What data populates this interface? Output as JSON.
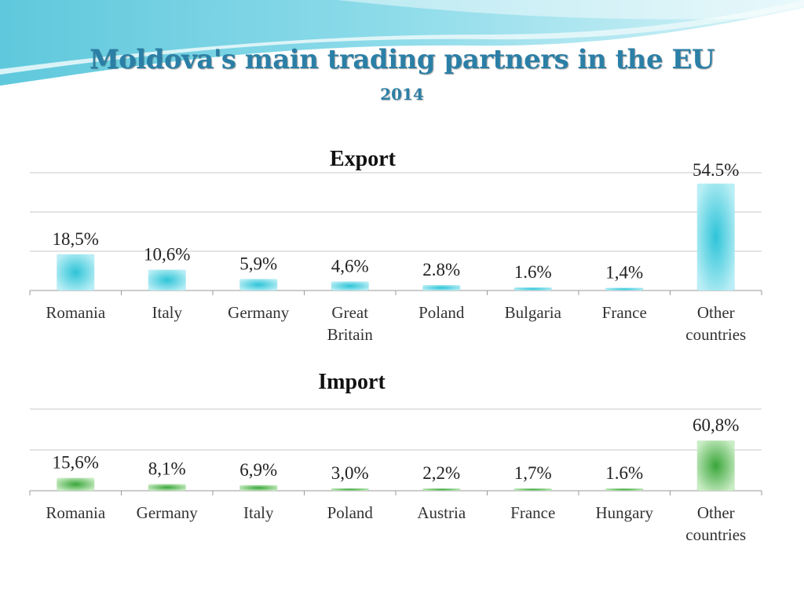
{
  "title": "Moldova's main trading partners in the EU",
  "subtitle": "2014",
  "colors": {
    "title": "#2b7fa6",
    "export_bar": "#2ec4d8",
    "export_bar_light": "#b9eef5",
    "import_bar": "#3aa63a",
    "import_bar_light": "#c9ecc4"
  },
  "chart_data": [
    {
      "type": "bar",
      "title": "Export",
      "categories": [
        "Romania",
        "Italy",
        "Germany",
        "Great Britain",
        "Poland",
        "Bulgaria",
        "France",
        "Other countries"
      ],
      "category_lines": [
        [
          "Romania"
        ],
        [
          "Italy"
        ],
        [
          "Germany"
        ],
        [
          "Great",
          "Britain"
        ],
        [
          "Poland"
        ],
        [
          "Bulgaria"
        ],
        [
          "France"
        ],
        [
          "Other",
          "countries"
        ]
      ],
      "values": [
        18.5,
        10.6,
        5.9,
        4.6,
        2.8,
        1.6,
        1.4,
        54.5
      ],
      "value_labels": [
        "18,5%",
        "10,6%",
        "5,9%",
        "4,6%",
        "2.8%",
        "1.6%",
        "1,4%",
        "54.5%"
      ],
      "ylim": [
        0,
        60
      ],
      "grid": true,
      "xlabel": "",
      "ylabel": ""
    },
    {
      "type": "bar",
      "title": "Import",
      "categories": [
        "Romania",
        "Germany",
        "Italy",
        "Poland",
        "Austria",
        "France",
        "Hungary",
        "Other countries"
      ],
      "category_lines": [
        [
          "Romania"
        ],
        [
          "Germany"
        ],
        [
          "Italy"
        ],
        [
          "Poland"
        ],
        [
          "Austria"
        ],
        [
          "France"
        ],
        [
          "Hungary"
        ],
        [
          "Other",
          "countries"
        ]
      ],
      "values": [
        15.6,
        8.1,
        6.9,
        3.0,
        2.2,
        1.7,
        1.6,
        60.8
      ],
      "value_labels": [
        "15,6%",
        "8,1%",
        "6,9%",
        "3,0%",
        "2,2%",
        "1,7%",
        "1.6%",
        "60,8%"
      ],
      "ylim": [
        0,
        60
      ],
      "grid": true,
      "xlabel": "",
      "ylabel": ""
    }
  ]
}
